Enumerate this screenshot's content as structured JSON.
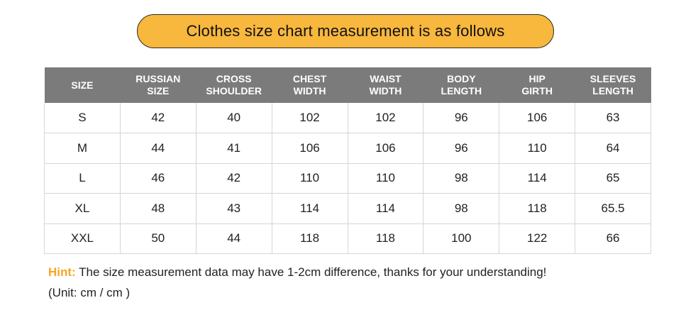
{
  "title": "Clothes size chart measurement is as follows",
  "table": {
    "headers": [
      [
        "SIZE"
      ],
      [
        "RUSSIAN",
        "SIZE"
      ],
      [
        "CROSS",
        "SHOULDER"
      ],
      [
        "CHEST",
        "WIDTH"
      ],
      [
        "WAIST",
        "WIDTH"
      ],
      [
        "BODY",
        "LENGTH"
      ],
      [
        "HIP",
        "GIRTH"
      ],
      [
        "SLEEVES",
        "LENGTH"
      ]
    ],
    "rows": [
      [
        "S",
        "42",
        "40",
        "102",
        "102",
        "96",
        "106",
        "63"
      ],
      [
        "M",
        "44",
        "41",
        "106",
        "106",
        "96",
        "110",
        "64"
      ],
      [
        "L",
        "46",
        "42",
        "110",
        "110",
        "98",
        "114",
        "65"
      ],
      [
        "XL",
        "48",
        "43",
        "114",
        "114",
        "98",
        "118",
        "65.5"
      ],
      [
        "XXL",
        "50",
        "44",
        "118",
        "118",
        "100",
        "122",
        "66"
      ]
    ]
  },
  "hint": {
    "label": "Hint:",
    "text": " The size measurement data may have 1-2cm difference, thanks for your understanding!"
  },
  "unit": "(Unit: cm / cm )",
  "colors": {
    "accent": "#f8b73d",
    "header_bg": "#7b7b7b",
    "hint_label": "#f5a623"
  }
}
